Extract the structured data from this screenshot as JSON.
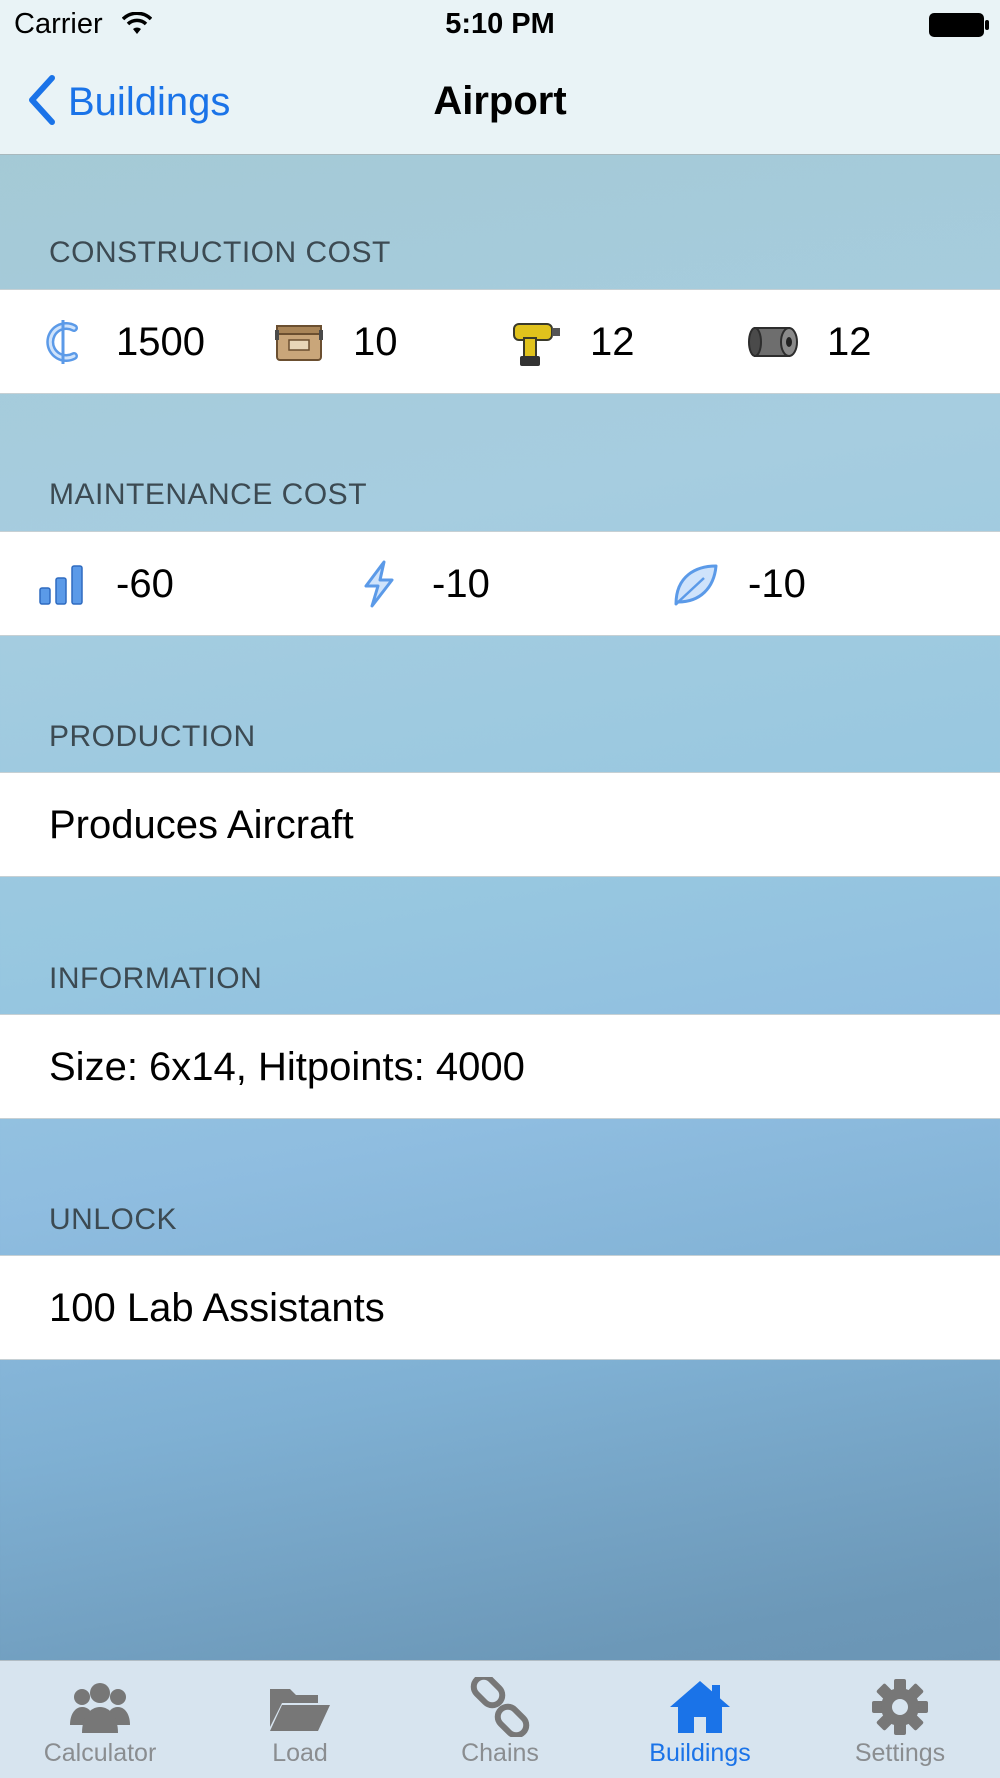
{
  "status_bar": {
    "carrier": "Carrier",
    "time": "5:10 PM"
  },
  "nav": {
    "back_label": "Buildings",
    "title": "Airport"
  },
  "sections": {
    "construction": {
      "header": "CONSTRUCTION COST",
      "items": [
        {
          "icon": "credits-icon",
          "value": "1500"
        },
        {
          "icon": "crate-icon",
          "value": "10"
        },
        {
          "icon": "drill-icon",
          "value": "12"
        },
        {
          "icon": "steel-coil-icon",
          "value": "12"
        }
      ]
    },
    "maintenance": {
      "header": "MAINTENANCE COST",
      "items": [
        {
          "icon": "workforce-icon",
          "value": "-60"
        },
        {
          "icon": "energy-icon",
          "value": "-10"
        },
        {
          "icon": "ecology-icon",
          "value": "-10"
        }
      ]
    },
    "production": {
      "header": "PRODUCTION",
      "text": "Produces Aircraft"
    },
    "information": {
      "header": "INFORMATION",
      "text": "Size: 6x14, Hitpoints: 4000"
    },
    "unlock": {
      "header": "UNLOCK",
      "text": "100 Lab Assistants"
    }
  },
  "tabs": [
    {
      "label": "Calculator",
      "icon": "people-icon"
    },
    {
      "label": "Load",
      "icon": "folder-icon"
    },
    {
      "label": "Chains",
      "icon": "chain-icon"
    },
    {
      "label": "Buildings",
      "icon": "home-icon",
      "active": true
    },
    {
      "label": "Settings",
      "icon": "gear-icon"
    }
  ],
  "colors": {
    "accent": "#1a73e8",
    "tab_inactive": "#8a8d90",
    "icon_blue": "#5b9ae8"
  }
}
